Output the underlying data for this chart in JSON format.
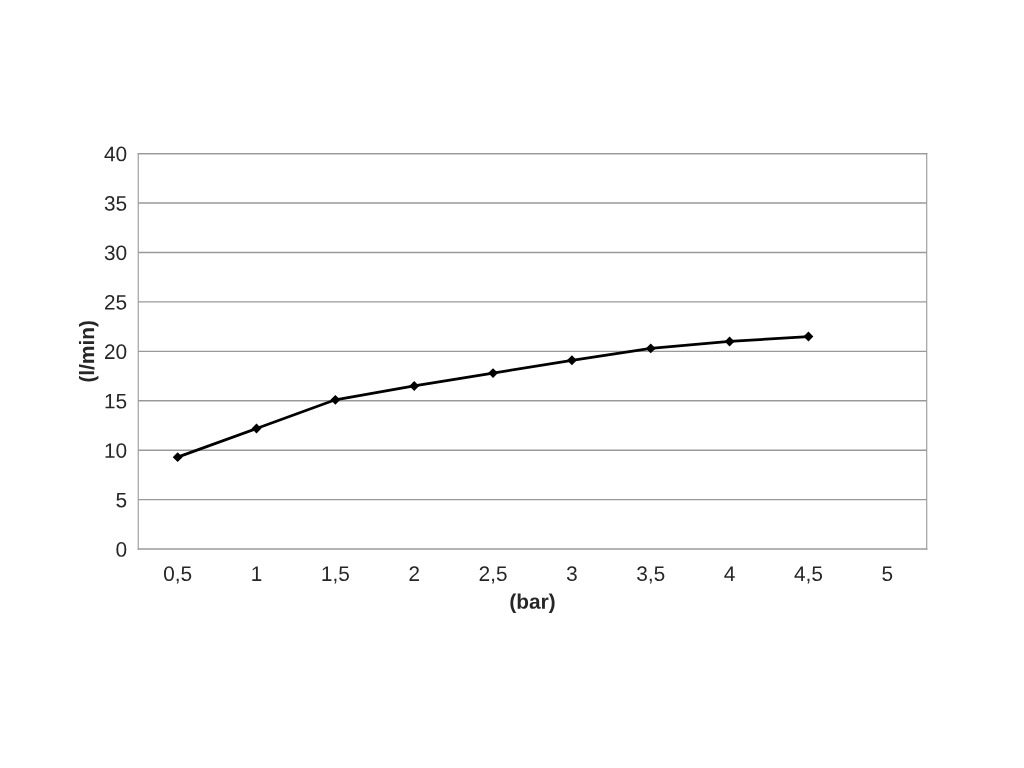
{
  "chart_data": {
    "type": "line",
    "xlabel": "(bar)",
    "ylabel": "(l/min)",
    "categories": [
      "0,5",
      "1",
      "1,5",
      "2",
      "2,5",
      "3",
      "3,5",
      "4",
      "4,5",
      "5"
    ],
    "series": [
      {
        "color": "#000000",
        "values": [
          9.3,
          12.2,
          15.1,
          16.5,
          17.8,
          19.1,
          20.3,
          21.0,
          21.5,
          null
        ]
      }
    ],
    "ylim": [
      0,
      40
    ],
    "yticks": [
      0,
      5,
      10,
      15,
      20,
      25,
      30,
      35,
      40
    ],
    "grid": "y",
    "marker": "diamond",
    "line_style": "solid",
    "legend": false
  }
}
